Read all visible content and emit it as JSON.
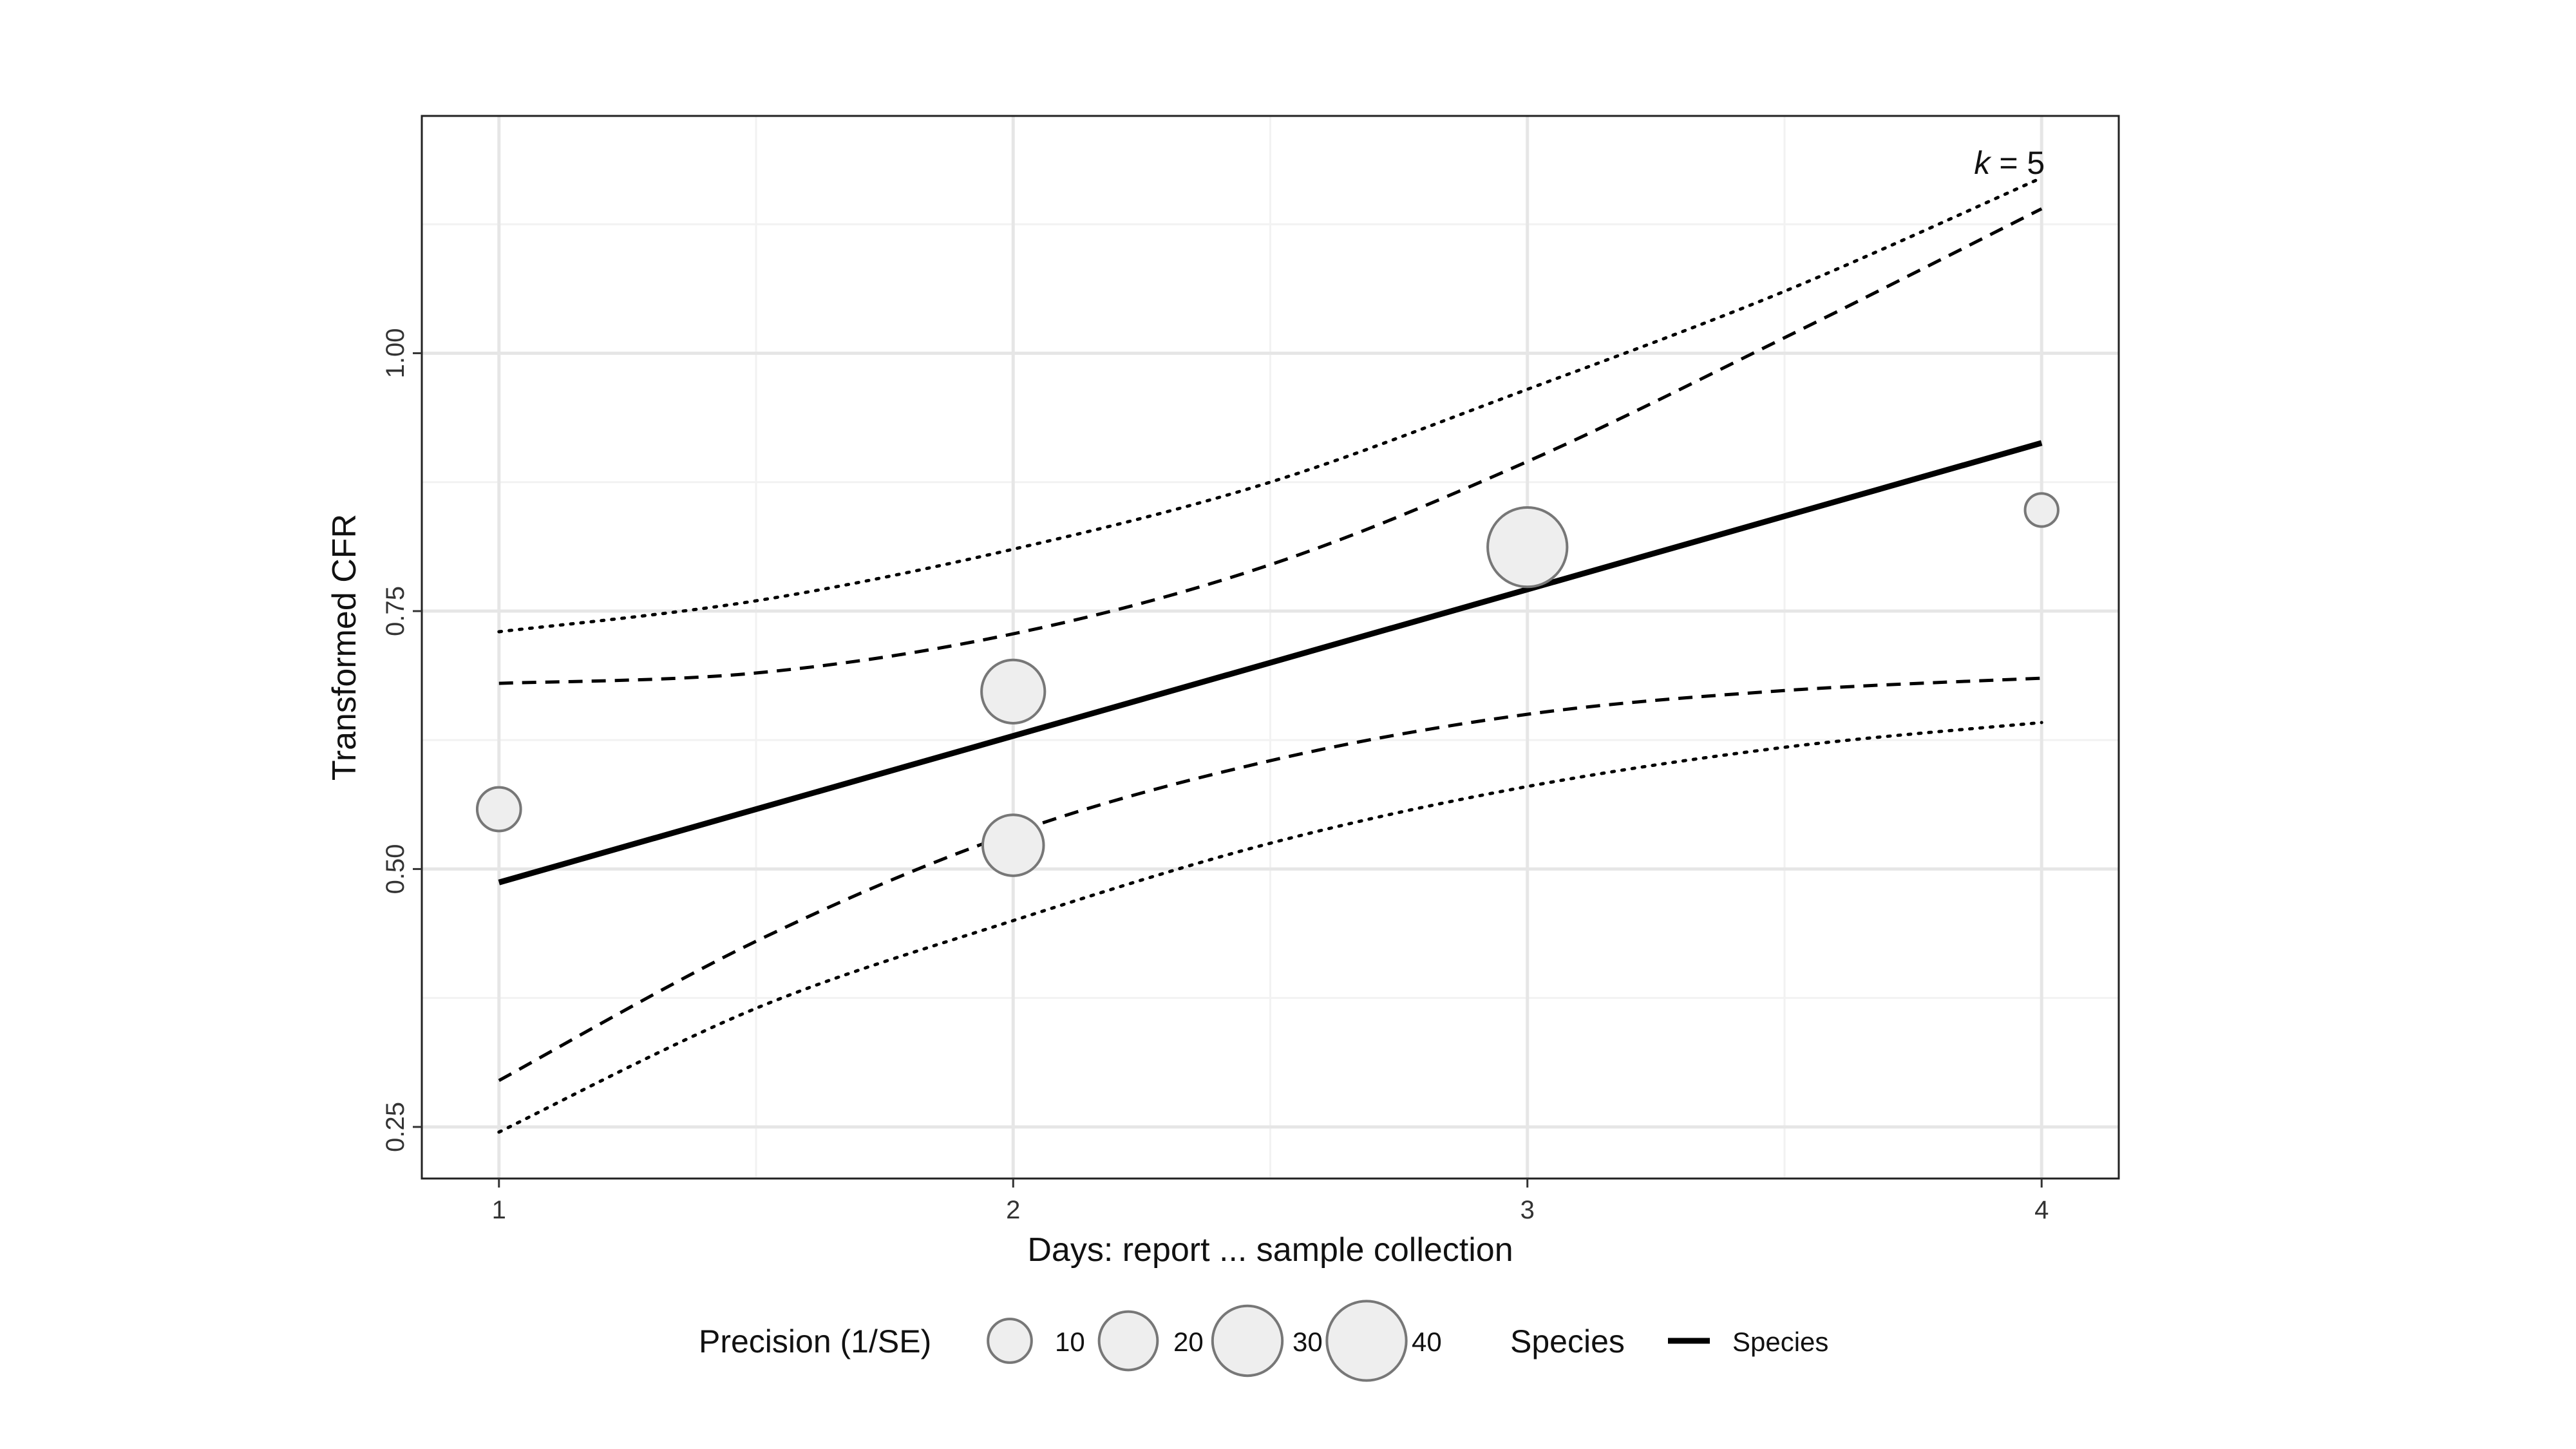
{
  "chart_data": {
    "type": "scatter",
    "title": "",
    "xlabel": "Days: report ... sample collection",
    "ylabel": "Transformed CFR",
    "xlim": [
      0.85,
      4.15
    ],
    "ylim": [
      0.2,
      1.23
    ],
    "x_ticks": [
      1,
      2,
      3,
      4
    ],
    "x_tick_labels": [
      "1",
      "2",
      "3",
      "4"
    ],
    "y_ticks": [
      0.25,
      0.5,
      0.75,
      1.0
    ],
    "y_tick_labels": [
      "0.25",
      "0.50",
      "0.75",
      "1.00"
    ],
    "grid": true,
    "annotation": {
      "italic": "k",
      "rest": " = 5"
    },
    "points": [
      {
        "x": 1,
        "y": 0.558,
        "precision": 10
      },
      {
        "x": 2,
        "y": 0.672,
        "precision": 24
      },
      {
        "x": 2,
        "y": 0.523,
        "precision": 22
      },
      {
        "x": 3,
        "y": 0.812,
        "precision": 40
      },
      {
        "x": 4,
        "y": 0.848,
        "precision": 5
      }
    ],
    "series": [
      {
        "name": "Species",
        "style": "solid",
        "x": [
          1,
          4
        ],
        "y": [
          0.487,
          0.913
        ]
      },
      {
        "style": "dashed",
        "x": [
          1,
          1.5,
          2,
          2.5,
          3,
          3.5,
          4
        ],
        "y": [
          0.68,
          0.69,
          0.728,
          0.795,
          0.895,
          1.015,
          1.14
        ]
      },
      {
        "style": "dashed",
        "x": [
          1,
          1.5,
          2,
          2.5,
          3,
          3.5,
          4
        ],
        "y": [
          0.295,
          0.43,
          0.535,
          0.605,
          0.65,
          0.673,
          0.685
        ]
      },
      {
        "style": "dotted",
        "x": [
          1,
          1.5,
          2,
          2.5,
          3,
          3.5,
          4
        ],
        "y": [
          0.73,
          0.76,
          0.81,
          0.875,
          0.965,
          1.06,
          1.17
        ]
      },
      {
        "style": "dotted",
        "x": [
          1,
          1.5,
          2,
          2.5,
          3,
          3.5,
          4
        ],
        "y": [
          0.245,
          0.365,
          0.45,
          0.525,
          0.58,
          0.618,
          0.642
        ]
      }
    ],
    "legend": {
      "placement": "bottom",
      "size_title": "Precision (1/SE)",
      "size_entries": [
        {
          "label": "10",
          "precision": 10
        },
        {
          "label": "20",
          "precision": 20
        },
        {
          "label": "30",
          "precision": 30
        },
        {
          "label": "40",
          "precision": 40
        }
      ],
      "line_title": "Species",
      "line_entries": [
        {
          "label": "Species",
          "style": "solid"
        }
      ]
    }
  },
  "colors": {
    "panel_border": "#222222",
    "grid_major": "#e6e6e6",
    "grid_minor": "#f2f2f2",
    "point_fill": "#eeeeee",
    "point_stroke": "#777777",
    "line": "#000000"
  }
}
